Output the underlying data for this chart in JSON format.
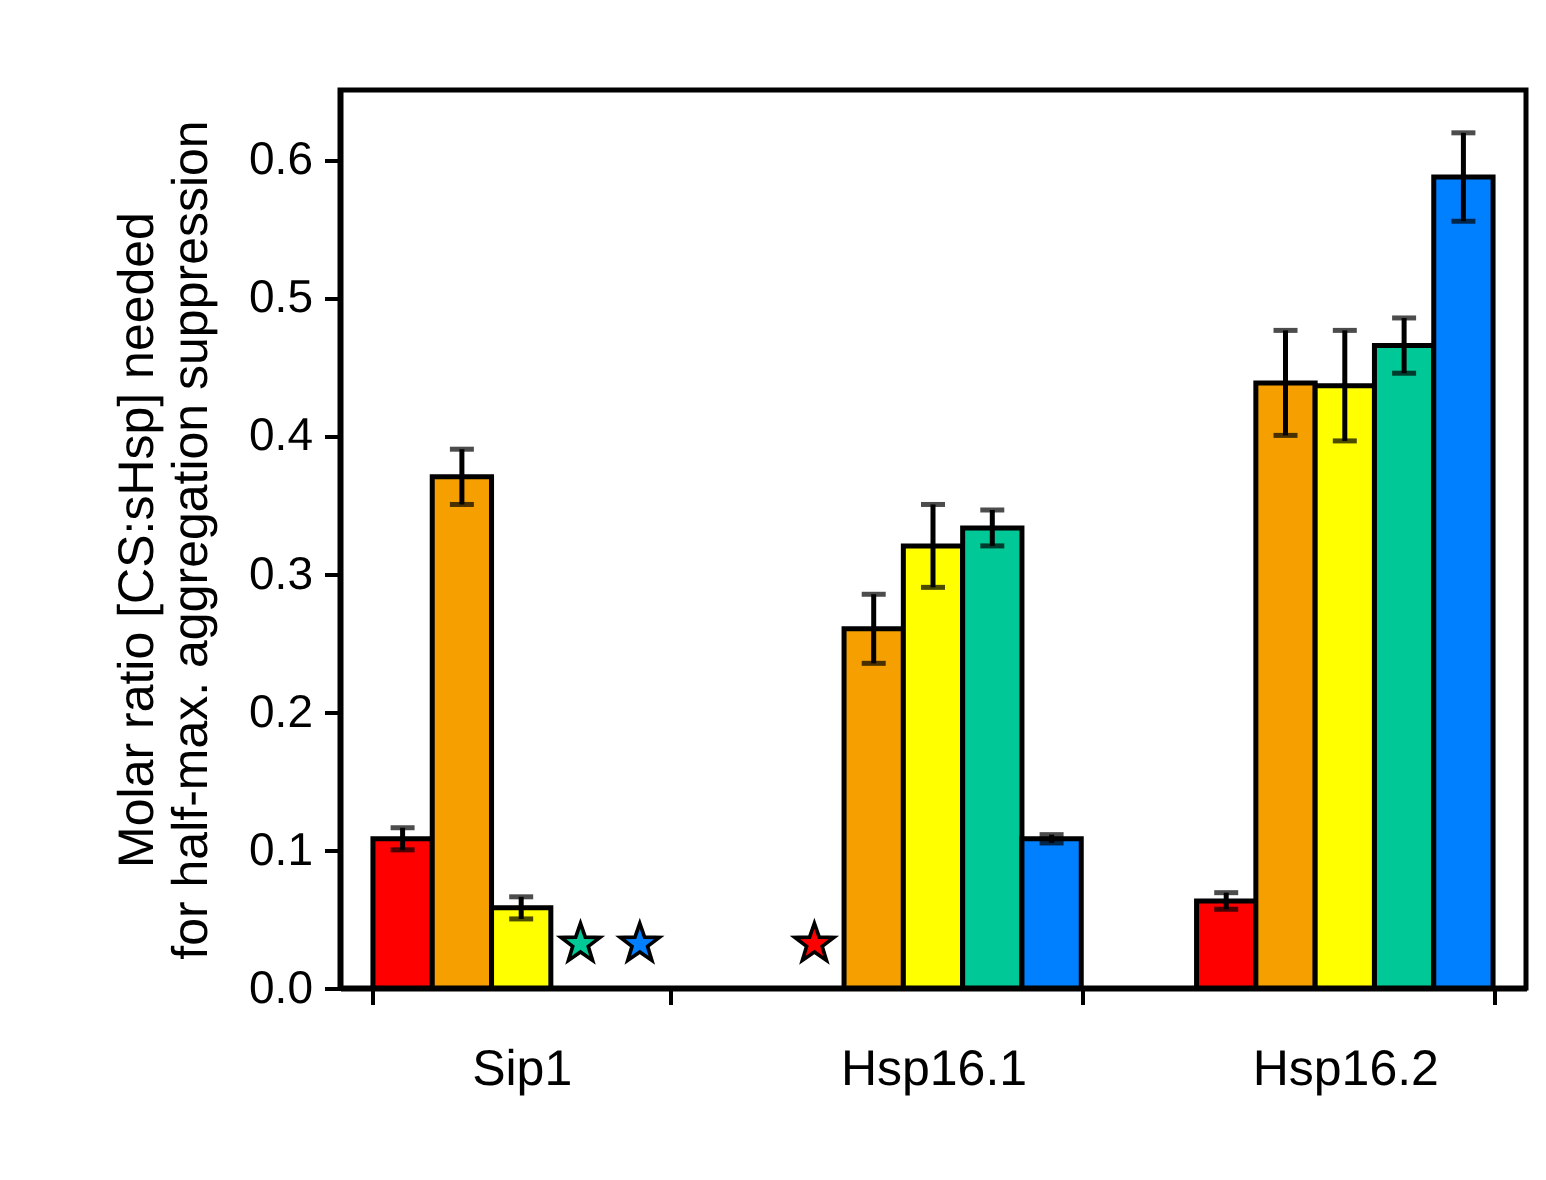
{
  "chart_data": {
    "type": "bar",
    "ylabel": "Molar ratio [CS:sHsp] needed\nfor half-max. aggregation suppression",
    "categories": [
      "Sip1",
      "Hsp16.1",
      "Hsp16.2"
    ],
    "ylim": [
      0,
      0.65
    ],
    "yticks": [
      {
        "value": 0,
        "label": "0.0"
      },
      {
        "value": 0.1,
        "label": "0.1"
      },
      {
        "value": 0.2,
        "label": "0.2"
      },
      {
        "value": 0.3,
        "label": "0.3"
      },
      {
        "value": 0.4,
        "label": "0.4"
      },
      {
        "value": 0.5,
        "label": "0.5"
      },
      {
        "value": 0.6,
        "label": "0.6"
      }
    ],
    "grid": false,
    "series": [
      {
        "color": "#ff0000",
        "values": [
          0.108,
          null,
          0.063
        ],
        "errors": [
          0.008,
          null,
          0.006
        ]
      },
      {
        "color": "#f5a000",
        "values": [
          0.37,
          0.26,
          0.438
        ],
        "errors": [
          0.02,
          0.025,
          0.038
        ]
      },
      {
        "color": "#ffff00",
        "values": [
          0.058,
          0.32,
          0.436
        ],
        "errors": [
          0.008,
          0.03,
          0.04
        ]
      },
      {
        "color": "#00c896",
        "values": [
          null,
          0.333,
          0.465
        ],
        "errors": [
          null,
          0.013,
          0.02
        ]
      },
      {
        "color": "#0080ff",
        "values": [
          null,
          0.108,
          0.587
        ],
        "errors": [
          null,
          0.003,
          0.032
        ]
      },
      {
        "type": "scatter",
        "marker": "star",
        "x": [
          "Sip1",
          "Sip1",
          "Hsp16.1"
        ],
        "values": [
          0.032,
          0.032,
          0.032
        ],
        "colors": [
          "#00c896",
          "#0080ff",
          "#ff0000"
        ]
      }
    ]
  }
}
